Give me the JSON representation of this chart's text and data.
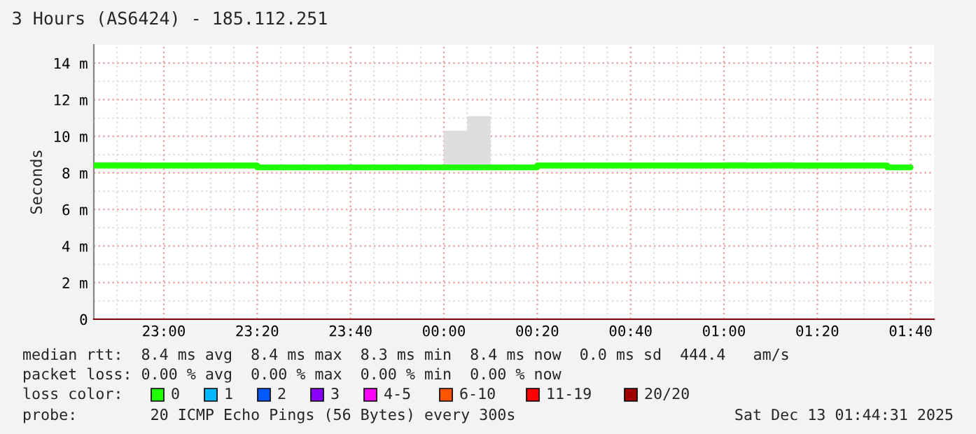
{
  "chart_data": {
    "type": "step",
    "title": "3 Hours (AS6424) - 185.112.251",
    "ylabel": "Seconds",
    "x": [
      "2025-12-12T22:45",
      "2025-12-12T22:50",
      "2025-12-12T22:55",
      "2025-12-12T23:00",
      "2025-12-12T23:05",
      "2025-12-12T23:10",
      "2025-12-12T23:15",
      "2025-12-12T23:20",
      "2025-12-12T23:25",
      "2025-12-12T23:30",
      "2025-12-12T23:35",
      "2025-12-12T23:40",
      "2025-12-12T23:45",
      "2025-12-12T23:50",
      "2025-12-12T23:55",
      "2025-12-13T00:00",
      "2025-12-13T00:05",
      "2025-12-13T00:10",
      "2025-12-13T00:15",
      "2025-12-13T00:20",
      "2025-12-13T00:25",
      "2025-12-13T00:30",
      "2025-12-13T00:35",
      "2025-12-13T00:40",
      "2025-12-13T00:45",
      "2025-12-13T00:50",
      "2025-12-13T00:55",
      "2025-12-13T01:00",
      "2025-12-13T01:05",
      "2025-12-13T01:10",
      "2025-12-13T01:15",
      "2025-12-13T01:20",
      "2025-12-13T01:25",
      "2025-12-13T01:30",
      "2025-12-13T01:35",
      "2025-12-13T01:40"
    ],
    "series": [
      {
        "name": "0",
        "color": "#20ff00",
        "values": [
          8.4,
          8.4,
          8.4,
          8.4,
          8.4,
          8.4,
          8.4,
          8.3,
          8.3,
          8.3,
          8.3,
          8.3,
          8.3,
          8.3,
          8.3,
          8.3,
          8.3,
          8.3,
          8.3,
          8.4,
          8.4,
          8.4,
          8.4,
          8.4,
          8.4,
          8.4,
          8.4,
          8.4,
          8.4,
          8.4,
          8.4,
          8.4,
          8.4,
          8.4,
          8.3,
          8.3
        ],
        "upper": [
          8.6,
          8.6,
          8.4,
          8.4,
          8.4,
          8.4,
          8.4,
          8.4,
          8.4,
          8.4,
          8.4,
          8.4,
          8.4,
          8.4,
          8.4,
          10.3,
          11.1,
          8.4,
          8.4,
          8.4,
          8.4,
          8.4,
          8.4,
          8.4,
          8.4,
          8.4,
          8.5,
          8.6,
          8.5,
          8.6,
          8.5,
          8.4,
          8.4,
          8.4,
          8.4,
          8.4
        ],
        "lower": [
          8.3,
          8.3,
          8.3,
          8.3,
          8.3,
          8.3,
          8.3,
          8.3,
          8.3,
          8.3,
          8.3,
          8.3,
          8.3,
          8.2,
          8.2,
          8.2,
          8.2,
          8.2,
          8.3,
          8.3,
          8.3,
          8.3,
          8.3,
          8.3,
          8.3,
          8.3,
          8.3,
          8.3,
          8.3,
          8.3,
          8.2,
          8.3,
          8.3,
          8.3,
          8.3,
          8.3
        ]
      },
      {
        "name": "1",
        "color": "#00b8ff",
        "values": [
          null,
          null,
          null,
          null,
          null,
          null,
          null,
          null,
          null,
          null,
          null,
          null,
          null,
          null,
          null,
          null,
          null,
          null,
          null,
          null,
          null,
          null,
          null,
          null,
          null,
          null,
          null,
          null,
          null,
          null,
          null,
          null,
          null,
          null,
          null,
          null
        ]
      },
      {
        "name": "2",
        "color": "#0059ff",
        "values": [
          null,
          null,
          null,
          null,
          null,
          null,
          null,
          null,
          null,
          null,
          null,
          null,
          null,
          null,
          null,
          null,
          null,
          null,
          null,
          null,
          null,
          null,
          null,
          null,
          null,
          null,
          null,
          null,
          null,
          null,
          null,
          null,
          null,
          null,
          null,
          null
        ]
      },
      {
        "name": "3",
        "color": "#8a00ff",
        "values": [
          null,
          null,
          null,
          null,
          null,
          null,
          null,
          null,
          null,
          null,
          null,
          null,
          null,
          null,
          null,
          null,
          null,
          null,
          null,
          null,
          null,
          null,
          null,
          null,
          null,
          null,
          null,
          null,
          null,
          null,
          null,
          null,
          null,
          null,
          null,
          null
        ]
      },
      {
        "name": "4-5",
        "color": "#ff00ff",
        "values": [
          null,
          null,
          null,
          null,
          null,
          null,
          null,
          null,
          null,
          null,
          null,
          null,
          null,
          null,
          null,
          null,
          null,
          null,
          null,
          null,
          null,
          null,
          null,
          null,
          null,
          null,
          null,
          null,
          null,
          null,
          null,
          null,
          null,
          null,
          null,
          null
        ]
      },
      {
        "name": "6-10",
        "color": "#ff5500",
        "values": [
          null,
          null,
          null,
          null,
          null,
          null,
          null,
          null,
          null,
          null,
          null,
          null,
          null,
          null,
          null,
          null,
          null,
          null,
          null,
          null,
          null,
          null,
          null,
          null,
          null,
          null,
          null,
          null,
          null,
          null,
          null,
          null,
          null,
          null,
          null,
          null
        ]
      },
      {
        "name": "11-19",
        "color": "#ff0000",
        "values": [
          null,
          null,
          null,
          null,
          null,
          null,
          null,
          null,
          null,
          null,
          null,
          null,
          null,
          null,
          null,
          null,
          null,
          null,
          null,
          null,
          null,
          null,
          null,
          null,
          null,
          null,
          null,
          null,
          null,
          null,
          null,
          null,
          null,
          null,
          null,
          null
        ]
      },
      {
        "name": "20/20",
        "color": "#a10000",
        "values": [
          null,
          null,
          null,
          null,
          null,
          null,
          null,
          null,
          null,
          null,
          null,
          null,
          null,
          null,
          null,
          null,
          null,
          null,
          null,
          null,
          null,
          null,
          null,
          null,
          null,
          null,
          null,
          null,
          null,
          null,
          null,
          null,
          null,
          null,
          null,
          null
        ]
      }
    ],
    "legend_title": "loss color:",
    "legend": "bottom",
    "xlim": [
      "2025-12-12T22:45",
      "2025-12-13T01:45"
    ],
    "xticks": [
      {
        "value": "2025-12-12T23:00",
        "label": "23:00"
      },
      {
        "value": "2025-12-12T23:20",
        "label": "23:20"
      },
      {
        "value": "2025-12-12T23:40",
        "label": "23:40"
      },
      {
        "value": "2025-12-13T00:00",
        "label": "00:00"
      },
      {
        "value": "2025-12-13T00:20",
        "label": "00:20"
      },
      {
        "value": "2025-12-13T00:40",
        "label": "00:40"
      },
      {
        "value": "2025-12-13T01:00",
        "label": "01:00"
      },
      {
        "value": "2025-12-13T01:20",
        "label": "01:20"
      },
      {
        "value": "2025-12-13T01:40",
        "label": "01:40"
      }
    ],
    "ylim": [
      0,
      15
    ],
    "yticks": [
      0,
      {
        "value": 2,
        "label": "2 m"
      },
      {
        "value": 4,
        "label": "4 m"
      },
      {
        "value": 6,
        "label": "6 m"
      },
      {
        "value": 8,
        "label": "8 m"
      },
      {
        "value": 10,
        "label": "10 m"
      },
      {
        "value": 12,
        "label": "12 m"
      },
      {
        "value": 14,
        "label": "14 m"
      }
    ],
    "grid": true,
    "annotations": [
      "median rtt:  8.4 ms avg  8.4 ms max  8.3 ms min  8.4 ms now  0.0 ms sd  444.4   am/s",
      "packet loss: 0.00 % avg  0.00 % max  0.00 % min  0.00 % now",
      "probe:        20 ICMP Echo Pings (56 Bytes) every 300s",
      "Sat Dec 13 01:44:31 2025"
    ]
  }
}
